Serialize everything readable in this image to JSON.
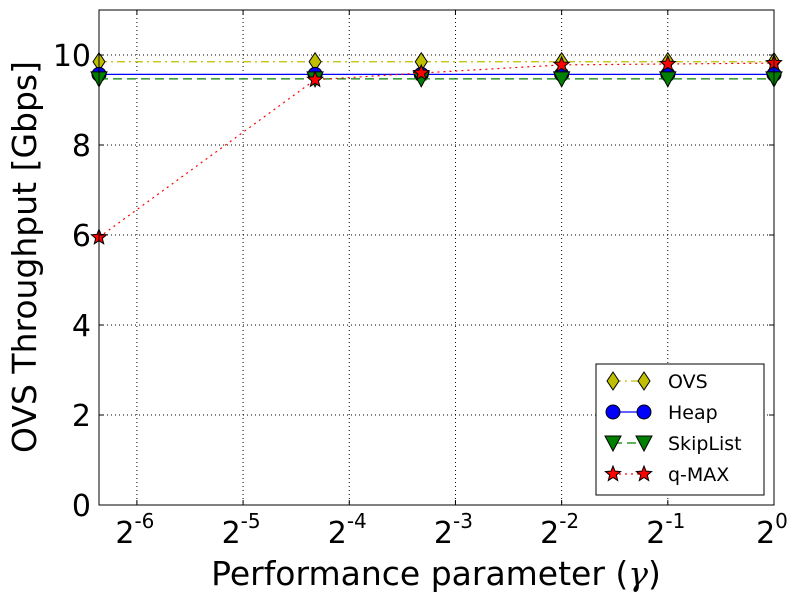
{
  "chart_data": {
    "type": "line",
    "title": "",
    "xlabel_prefix": "Performance parameter (",
    "xlabel_symbol": "γ",
    "xlabel_suffix": ")",
    "ylabel": "OVS Throughput [Gbps]",
    "x_scale": "log2",
    "xlim": [
      0.0122,
      1
    ],
    "ylim": [
      0,
      11
    ],
    "grid": true,
    "legend_position": "lower-right",
    "x": [
      0.0122,
      0.05,
      0.1,
      0.25,
      0.5,
      1
    ],
    "x_ticks": [
      {
        "value": 0.015625,
        "base": "2",
        "exp": "-6"
      },
      {
        "value": 0.03125,
        "base": "2",
        "exp": "-5"
      },
      {
        "value": 0.0625,
        "base": "2",
        "exp": "-4"
      },
      {
        "value": 0.125,
        "base": "2",
        "exp": "-3"
      },
      {
        "value": 0.25,
        "base": "2",
        "exp": "-2"
      },
      {
        "value": 0.5,
        "base": "2",
        "exp": "-1"
      },
      {
        "value": 1,
        "base": "2",
        "exp": "0"
      }
    ],
    "y_ticks": [
      {
        "value": 0,
        "label": "0"
      },
      {
        "value": 2,
        "label": "2"
      },
      {
        "value": 4,
        "label": "4"
      },
      {
        "value": 6,
        "label": "6"
      },
      {
        "value": 8,
        "label": "8"
      },
      {
        "value": 10,
        "label": "10"
      }
    ],
    "series": [
      {
        "name": "OVS",
        "values": [
          9.85,
          9.85,
          9.85,
          9.85,
          9.85,
          9.85
        ],
        "color": "#bfbf00",
        "marker": "diamond",
        "line_style": "dashdot"
      },
      {
        "name": "Heap",
        "values": [
          9.57,
          9.57,
          9.57,
          9.57,
          9.57,
          9.57
        ],
        "color": "#0000ff",
        "marker": "circle",
        "line_style": "solid"
      },
      {
        "name": "SkipList",
        "values": [
          9.47,
          9.47,
          9.47,
          9.47,
          9.47,
          9.47
        ],
        "color": "#008000",
        "marker": "triangle-down",
        "line_style": "dashed"
      },
      {
        "name": "q-MAX",
        "values": [
          5.95,
          9.45,
          9.6,
          9.78,
          9.8,
          9.82
        ],
        "color": "#ff0000",
        "marker": "star",
        "line_style": "dotted"
      }
    ]
  }
}
